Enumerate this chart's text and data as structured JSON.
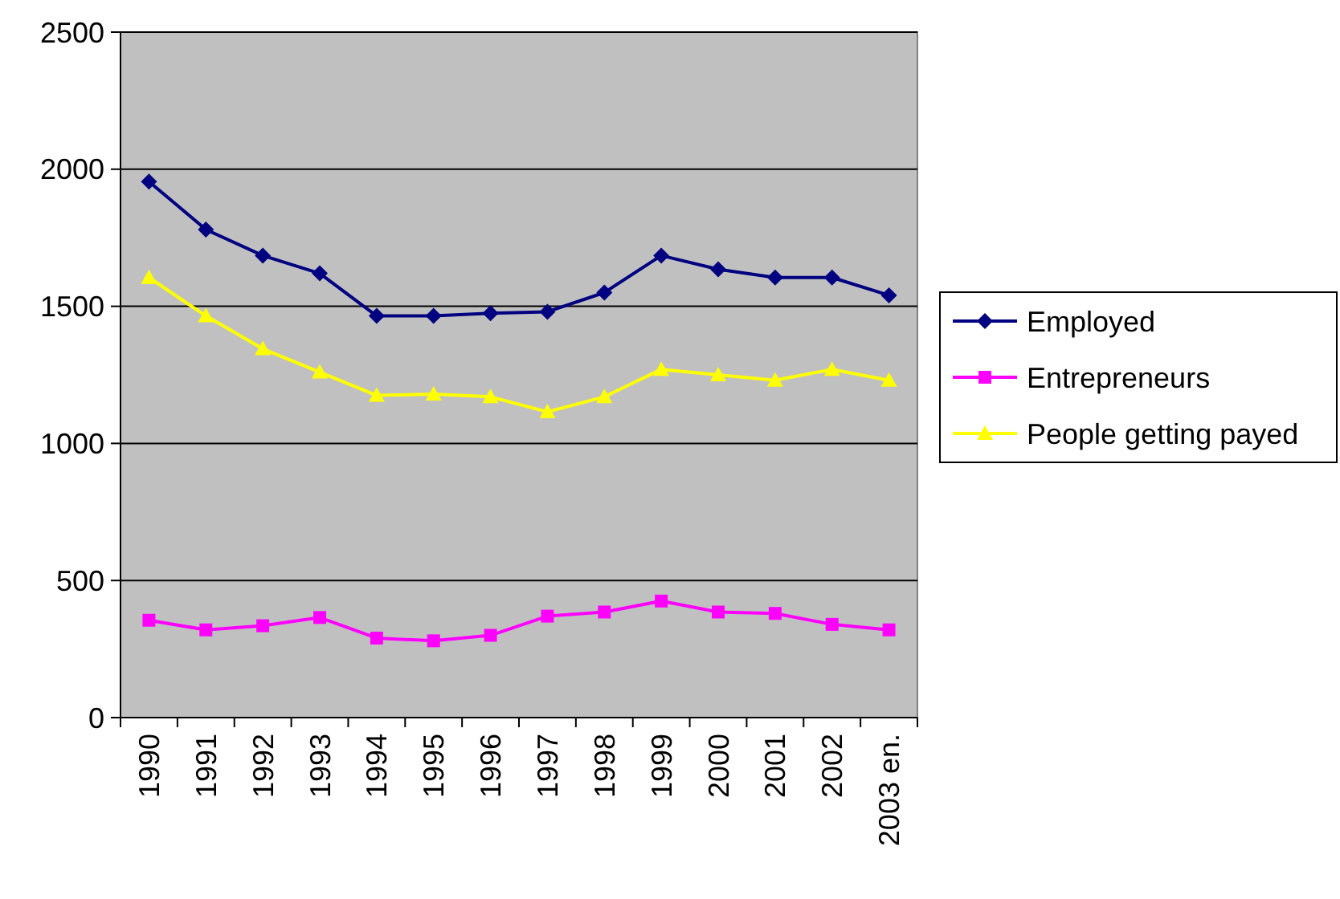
{
  "chart_data": {
    "type": "line",
    "categories": [
      "1990",
      "1991",
      "1992",
      "1993",
      "1994",
      "1995",
      "1996",
      "1997",
      "1998",
      "1999",
      "2000",
      "2001",
      "2002",
      "2003 en."
    ],
    "series": [
      {
        "name": "Employed",
        "color": "#000080",
        "marker": "diamond",
        "values": [
          1955,
          1780,
          1685,
          1620,
          1465,
          1465,
          1475,
          1480,
          1550,
          1685,
          1635,
          1605,
          1605,
          1540
        ]
      },
      {
        "name": "Entrepreneurs",
        "color": "#ff00ff",
        "marker": "square",
        "values": [
          355,
          320,
          335,
          365,
          290,
          280,
          300,
          370,
          385,
          425,
          385,
          380,
          340,
          320
        ]
      },
      {
        "name": "People getting payed",
        "color": "#ffff00",
        "marker": "triangle",
        "values": [
          1605,
          1465,
          1345,
          1260,
          1175,
          1180,
          1170,
          1115,
          1170,
          1270,
          1250,
          1230,
          1270,
          1230
        ]
      }
    ],
    "ylim": [
      0,
      2500
    ],
    "yticks": [
      0,
      500,
      1000,
      1500,
      2000,
      2500
    ],
    "grid": "y",
    "legend": "right"
  }
}
